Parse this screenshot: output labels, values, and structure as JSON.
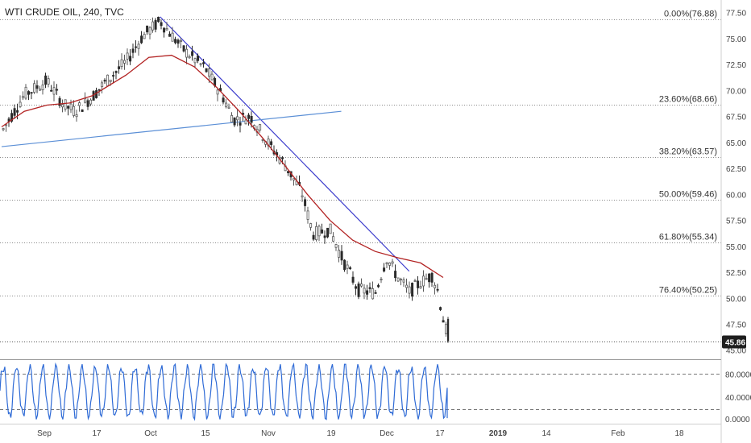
{
  "header": {
    "title": "WTI CRUDE OIL, 240, TVC"
  },
  "chart_data": {
    "type": "candlestick",
    "title": "WTI CRUDE OIL, 240, TVC",
    "price_axis": {
      "range": [
        44.9,
        78.1
      ],
      "ticks": [
        "77.50",
        "75.00",
        "72.50",
        "70.00",
        "67.50",
        "65.00",
        "62.50",
        "60.00",
        "57.50",
        "55.00",
        "52.50",
        "50.00",
        "47.50",
        "45.00"
      ]
    },
    "last_price": "45.86",
    "fibonacci_levels": [
      {
        "label": "0.00%(76.88)",
        "value": 76.88
      },
      {
        "label": "23.60%(68.66)",
        "value": 68.66
      },
      {
        "label": "38.20%(63.57)",
        "value": 63.57
      },
      {
        "label": "50.00%(59.46)",
        "value": 59.46
      },
      {
        "label": "61.80%(55.34)",
        "value": 55.34
      },
      {
        "label": "76.40%(50.25)",
        "value": 50.25
      }
    ],
    "time_axis": {
      "labels": [
        "Sep",
        "17",
        "Oct",
        "15",
        "Nov",
        "19",
        "Dec",
        "17",
        "2019",
        "14",
        "Feb",
        "18"
      ],
      "bold": [
        "2019"
      ]
    },
    "price_path": [
      {
        "t": 0,
        "v": 66.0
      },
      {
        "t": 4,
        "v": 69.6
      },
      {
        "t": 8,
        "v": 70.9
      },
      {
        "t": 11,
        "v": 68.6
      },
      {
        "t": 13,
        "v": 68.0
      },
      {
        "t": 16,
        "v": 69.4
      },
      {
        "t": 18,
        "v": 70.6
      },
      {
        "t": 22,
        "v": 72.8
      },
      {
        "t": 25,
        "v": 75.3
      },
      {
        "t": 28,
        "v": 76.7
      },
      {
        "t": 32,
        "v": 74.0
      },
      {
        "t": 36,
        "v": 72.1
      },
      {
        "t": 39,
        "v": 69.5
      },
      {
        "t": 41,
        "v": 67.2
      },
      {
        "t": 44,
        "v": 67.5
      },
      {
        "t": 47,
        "v": 65.0
      },
      {
        "t": 50,
        "v": 62.9
      },
      {
        "t": 53,
        "v": 60.2
      },
      {
        "t": 55,
        "v": 56.2
      },
      {
        "t": 58,
        "v": 56.6
      },
      {
        "t": 60,
        "v": 54.0
      },
      {
        "t": 63,
        "v": 50.8
      },
      {
        "t": 66,
        "v": 50.5
      },
      {
        "t": 68,
        "v": 53.9
      },
      {
        "t": 70,
        "v": 52.0
      },
      {
        "t": 72,
        "v": 50.6
      },
      {
        "t": 74,
        "v": 51.5
      },
      {
        "t": 76,
        "v": 52.2
      },
      {
        "t": 77,
        "v": 50.8
      },
      {
        "t": 78,
        "v": 48.0
      },
      {
        "t": 79,
        "v": 45.86
      }
    ],
    "moving_average": [
      {
        "t": 0,
        "v": 66.5
      },
      {
        "t": 4,
        "v": 68.0
      },
      {
        "t": 8,
        "v": 68.6
      },
      {
        "t": 12,
        "v": 68.8
      },
      {
        "t": 16,
        "v": 69.5
      },
      {
        "t": 22,
        "v": 71.5
      },
      {
        "t": 26,
        "v": 73.2
      },
      {
        "t": 30,
        "v": 73.4
      },
      {
        "t": 34,
        "v": 72.3
      },
      {
        "t": 38,
        "v": 70.3
      },
      {
        "t": 42,
        "v": 68.0
      },
      {
        "t": 46,
        "v": 65.5
      },
      {
        "t": 50,
        "v": 62.8
      },
      {
        "t": 54,
        "v": 60.0
      },
      {
        "t": 58,
        "v": 57.5
      },
      {
        "t": 62,
        "v": 55.6
      },
      {
        "t": 66,
        "v": 54.5
      },
      {
        "t": 70,
        "v": 53.9
      },
      {
        "t": 74,
        "v": 53.4
      },
      {
        "t": 78,
        "v": 52.0
      }
    ],
    "trendlines": [
      {
        "name": "downtrend",
        "color": "#3b3bcc",
        "from": {
          "t": 28,
          "v": 77.1
        },
        "to": {
          "t": 72,
          "v": 52.6
        }
      },
      {
        "name": "uptrend",
        "color": "#5b8fd6",
        "from": {
          "t": 0,
          "v": 64.6
        },
        "to": {
          "t": 60,
          "v": 68.0
        }
      }
    ],
    "oscillator": {
      "range": [
        0,
        100
      ],
      "ticks": [
        "80.0000",
        "40.0000",
        "0.0000"
      ],
      "levels": [
        80,
        20
      ],
      "cycle_count": 34,
      "last_level": 4
    },
    "colors": {
      "up_candle": "#5a5a5a",
      "down_candle": "#2b2b2b",
      "moving_average": "#b22222",
      "oscillator": "#2f6bd6",
      "price_label_bg": "#1e1e1e"
    }
  }
}
